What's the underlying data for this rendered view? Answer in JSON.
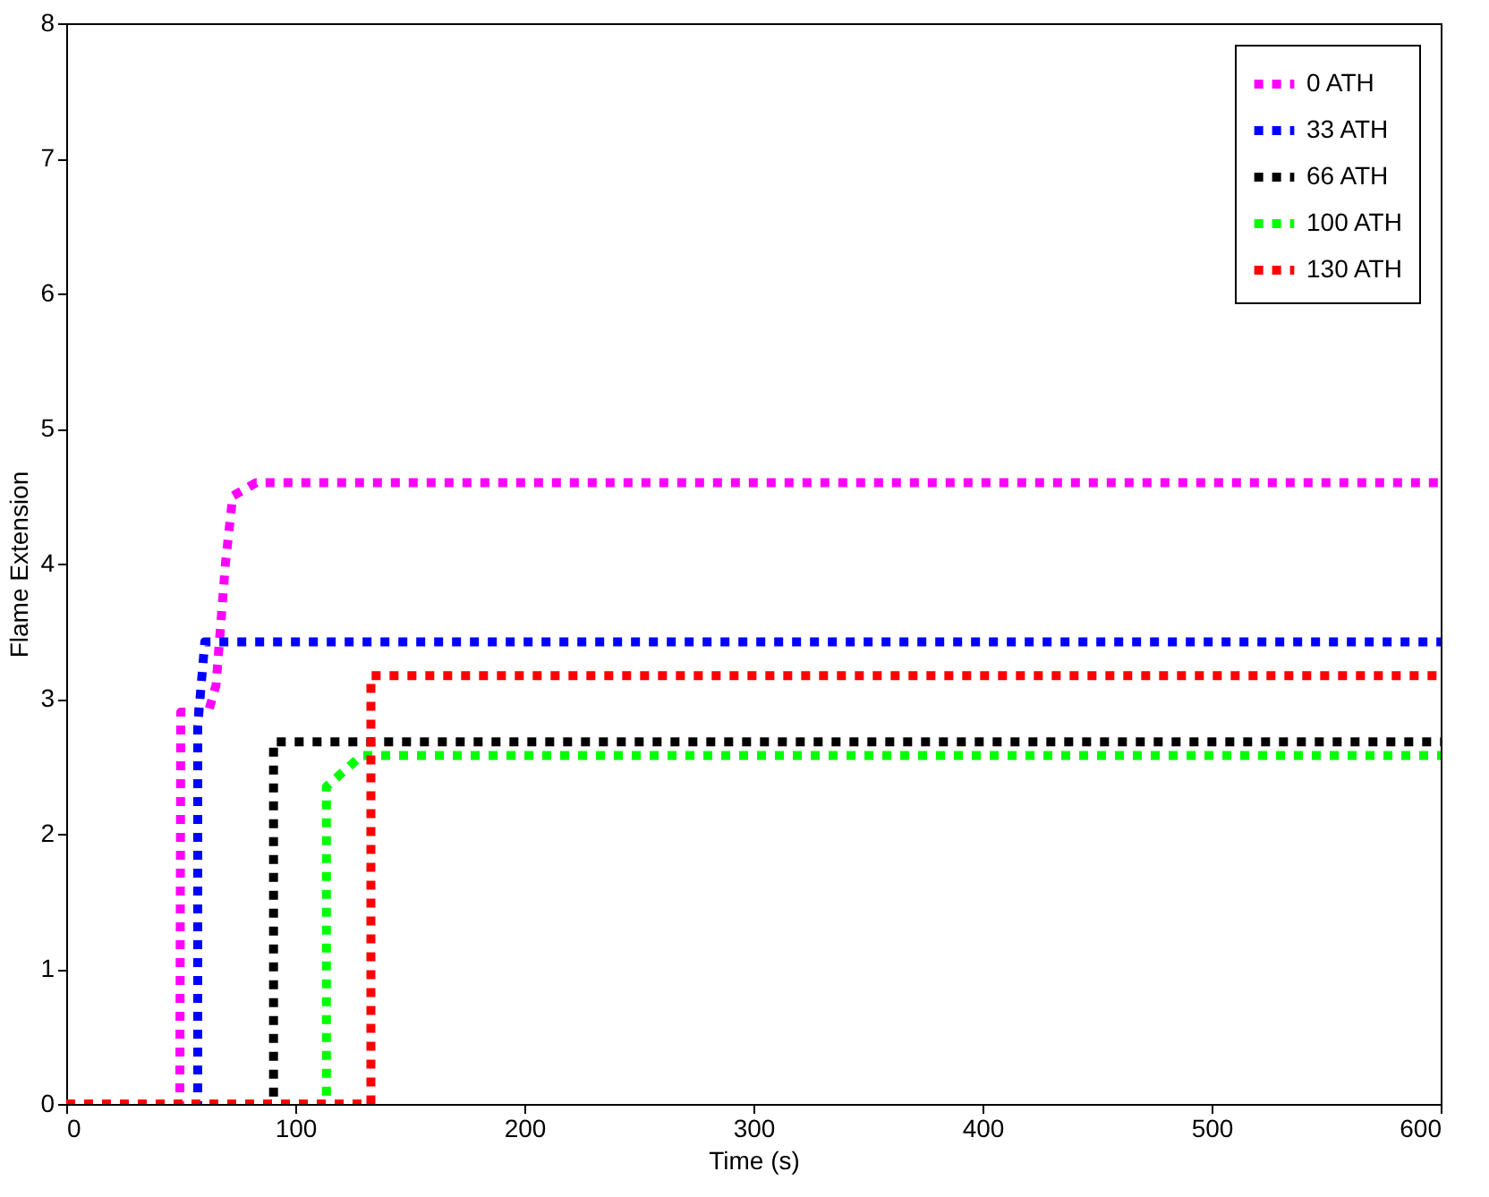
{
  "chart_data": {
    "type": "line",
    "xlabel": "Time (s)",
    "ylabel": "Flame Extension",
    "xlim": [
      0,
      600
    ],
    "ylim": [
      0,
      8
    ],
    "xticks": [
      0,
      100,
      200,
      300,
      400,
      500,
      600
    ],
    "yticks": [
      0,
      1,
      2,
      3,
      4,
      5,
      6,
      7,
      8
    ],
    "grid": false,
    "legend": "top right",
    "line_style": "dotted",
    "marker": "none",
    "series": [
      {
        "name": "0 ATH",
        "color": "#ff00ff",
        "x": [
          0,
          49.6,
          50,
          62,
          65.4,
          69.5,
          72.7,
          83,
          600
        ],
        "values": [
          0,
          0,
          2.9,
          2.9,
          3.1,
          4.0,
          4.5,
          4.6,
          4.6
        ]
      },
      {
        "name": "33 ATH",
        "color": "#0000ff",
        "x": [
          0,
          57.4,
          57.4,
          60.5,
          600
        ],
        "values": [
          0,
          0,
          2.8,
          3.42,
          3.42
        ]
      },
      {
        "name": "66 ATH",
        "color": "#000000",
        "x": [
          0,
          90.5,
          90.5,
          600
        ],
        "values": [
          0,
          0,
          2.68,
          2.68
        ]
      },
      {
        "name": "100 ATH",
        "color": "#00ff00",
        "x": [
          0,
          113.6,
          113.6,
          129,
          600
        ],
        "values": [
          0,
          0,
          2.35,
          2.58,
          2.58
        ]
      },
      {
        "name": "130 ATH",
        "color": "#ff0000",
        "x": [
          0,
          133,
          133,
          600
        ],
        "values": [
          0,
          0,
          3.17,
          3.17
        ]
      }
    ]
  }
}
